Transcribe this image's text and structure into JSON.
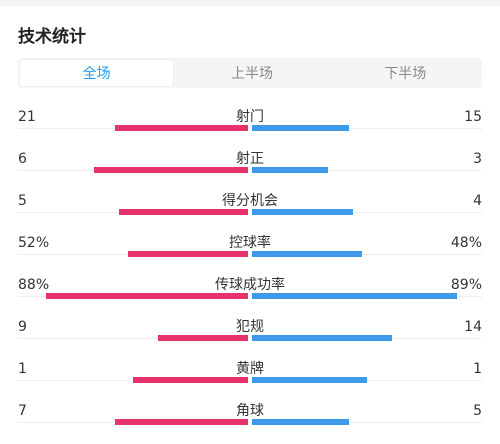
{
  "title": "技术统计",
  "tabs": [
    {
      "label": "全场",
      "active": true
    },
    {
      "label": "上半场",
      "active": false
    },
    {
      "label": "下半场",
      "active": false
    }
  ],
  "colors": {
    "home": "#e6336b",
    "away": "#3d9be9",
    "active_tab": "#1f9cf0"
  },
  "stats": [
    {
      "label": "射门",
      "home": "21",
      "away": "15",
      "home_share": 0.58,
      "away_share": 0.42
    },
    {
      "label": "射正",
      "home": "6",
      "away": "3",
      "home_share": 0.67,
      "away_share": 0.33
    },
    {
      "label": "得分机会",
      "home": "5",
      "away": "4",
      "home_share": 0.56,
      "away_share": 0.44
    },
    {
      "label": "控球率",
      "home": "52%",
      "away": "48%",
      "home_share": 0.52,
      "away_share": 0.48
    },
    {
      "label": "传球成功率",
      "home": "88%",
      "away": "89%",
      "home_share": 0.88,
      "away_share": 0.89
    },
    {
      "label": "犯规",
      "home": "9",
      "away": "14",
      "home_share": 0.39,
      "away_share": 0.61
    },
    {
      "label": "黄牌",
      "home": "1",
      "away": "1",
      "home_share": 0.5,
      "away_share": 0.5
    },
    {
      "label": "角球",
      "home": "7",
      "away": "5",
      "home_share": 0.58,
      "away_share": 0.42
    }
  ]
}
